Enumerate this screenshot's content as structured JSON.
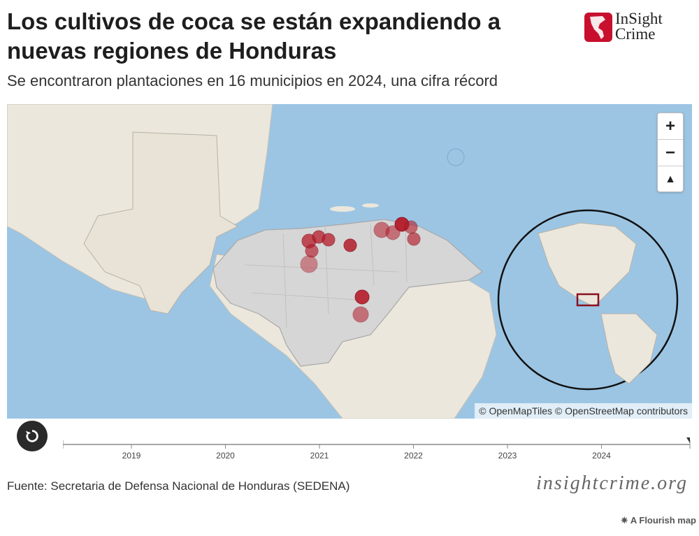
{
  "header": {
    "title": "Los cultivos de coca se están expandiendo a nuevas regiones de Honduras",
    "subtitle": "Se encontraron plantaciones en 16 municipios en 2024, una cifra récord",
    "logo_line1": "InSight",
    "logo_line2": "Crime"
  },
  "map": {
    "attribution_1": "© OpenMapTiles",
    "attribution_2": "© OpenStreetMap contributors",
    "zoom_in": "+",
    "zoom_out": "−",
    "compass": "▲",
    "colors": {
      "water": "#9cc5e4",
      "land": "#ece7dc",
      "honduras": "#d6d6d6",
      "marker": "#b51c2a"
    }
  },
  "timeline": {
    "years": [
      "2019",
      "2020",
      "2021",
      "2022",
      "2023",
      "2024"
    ],
    "progress": 1.0
  },
  "footer": {
    "source": "Fuente: Secretaria de Defensa Nacional de Honduras (SEDENA)",
    "site": "insightcrime.org",
    "flourish": "A Flourish map"
  }
}
